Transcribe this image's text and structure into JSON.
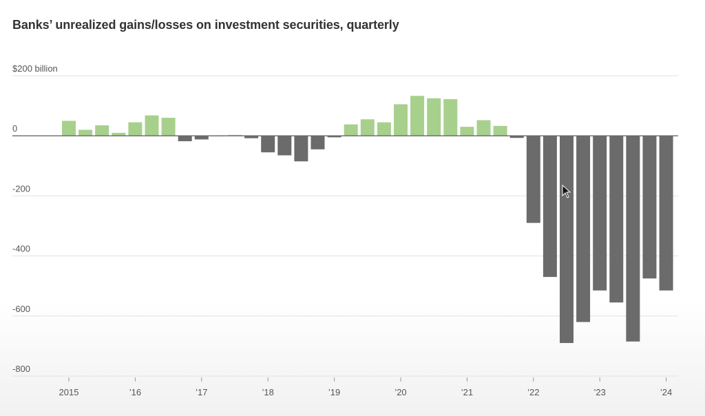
{
  "chart_data": {
    "type": "bar",
    "title": "Banks’ unrealized gains/losses on investment securities, quarterly",
    "xlabel": "",
    "ylabel": "",
    "ylim": [
      -800,
      200
    ],
    "y_ticks": [
      {
        "value": 200,
        "label": "$200 billion"
      },
      {
        "value": 0,
        "label": "0"
      },
      {
        "value": -200,
        "label": "-200"
      },
      {
        "value": -400,
        "label": "-400"
      },
      {
        "value": -600,
        "label": "-600"
      },
      {
        "value": -800,
        "label": "-800"
      }
    ],
    "x_ticks": [
      {
        "index": 0,
        "label": "2015"
      },
      {
        "index": 4,
        "label": "’16"
      },
      {
        "index": 8,
        "label": "’17"
      },
      {
        "index": 12,
        "label": "’18"
      },
      {
        "index": 16,
        "label": "’19"
      },
      {
        "index": 20,
        "label": "’20"
      },
      {
        "index": 24,
        "label": "’21"
      },
      {
        "index": 28,
        "label": "’22"
      },
      {
        "index": 32,
        "label": "’23"
      },
      {
        "index": 36,
        "label": "’24"
      }
    ],
    "categories": [
      "2015 Q1",
      "2015 Q2",
      "2015 Q3",
      "2015 Q4",
      "2016 Q1",
      "2016 Q2",
      "2016 Q3",
      "2016 Q4",
      "2017 Q1",
      "2017 Q2",
      "2017 Q3",
      "2017 Q4",
      "2018 Q1",
      "2018 Q2",
      "2018 Q3",
      "2018 Q4",
      "2019 Q1",
      "2019 Q2",
      "2019 Q3",
      "2019 Q4",
      "2020 Q1",
      "2020 Q2",
      "2020 Q3",
      "2020 Q4",
      "2021 Q1",
      "2021 Q2",
      "2021 Q3",
      "2021 Q4",
      "2022 Q1",
      "2022 Q2",
      "2022 Q3",
      "2022 Q4",
      "2023 Q1",
      "2023 Q2",
      "2023 Q3",
      "2023 Q4",
      "2024 Q1"
    ],
    "values": [
      50,
      20,
      35,
      10,
      45,
      68,
      60,
      -18,
      -12,
      0,
      3,
      -8,
      -55,
      -65,
      -85,
      -45,
      -5,
      38,
      55,
      45,
      105,
      133,
      125,
      122,
      30,
      52,
      33,
      -7,
      -290,
      -470,
      -690,
      -620,
      -515,
      -555,
      -685,
      -475,
      -515
    ],
    "colors": {
      "positive": "#a8d08d",
      "negative": "#6b6b6b"
    }
  }
}
